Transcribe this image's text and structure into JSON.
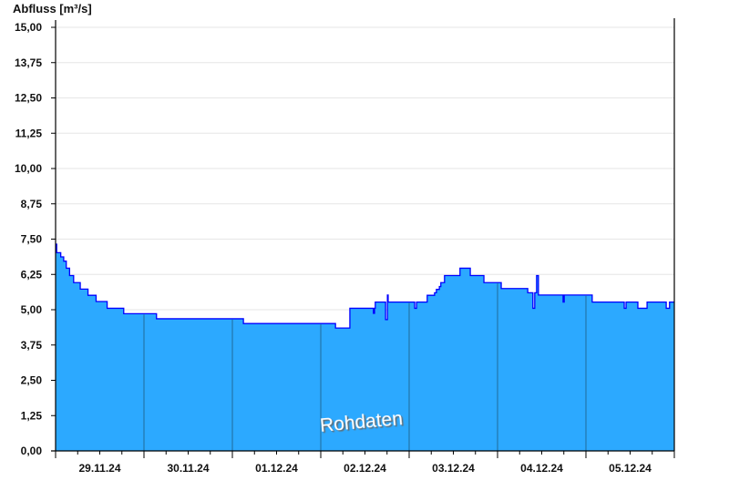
{
  "chart_data": {
    "type": "area",
    "title": "",
    "ylabel": "Abfluss [m³/s]",
    "xlabel": "",
    "ylim": [
      0,
      15
    ],
    "xlim": [
      "2024-11-29T00:00",
      "2024-12-06T00:00"
    ],
    "yticks": [
      "0,00",
      "1,25",
      "2,50",
      "3,75",
      "5,00",
      "6,25",
      "7,50",
      "8,75",
      "10,00",
      "11,25",
      "12,50",
      "13,75",
      "15,00"
    ],
    "xtick_labels": [
      "29.11.24",
      "30.11.24",
      "01.12.24",
      "02.12.24",
      "03.12.24",
      "04.12.24",
      "05.12.24"
    ],
    "grid": "horizontal",
    "step": true,
    "watermark": "Rohdaten",
    "colors": {
      "fill": "#2ca9ff",
      "line": "#0000ff",
      "day_separator": "#1f6a9a",
      "grid": "#e6e6e6"
    },
    "points": [
      [
        "2024-11-29T00:00",
        7.32
      ],
      [
        "2024-11-29T00:18",
        7.02
      ],
      [
        "2024-11-29T01:24",
        6.87
      ],
      [
        "2024-11-29T02:12",
        6.72
      ],
      [
        "2024-11-29T02:54",
        6.47
      ],
      [
        "2024-11-29T03:48",
        6.21
      ],
      [
        "2024-11-29T04:54",
        5.96
      ],
      [
        "2024-11-29T06:42",
        5.73
      ],
      [
        "2024-11-29T08:48",
        5.51
      ],
      [
        "2024-11-29T11:00",
        5.29
      ],
      [
        "2024-11-29T14:00",
        5.05
      ],
      [
        "2024-11-29T18:30",
        4.86
      ],
      [
        "2024-11-30T03:24",
        4.68
      ],
      [
        "2024-12-01T03:00",
        4.51
      ],
      [
        "2024-12-02T04:00",
        4.35
      ],
      [
        "2024-12-02T07:54",
        5.05
      ],
      [
        "2024-12-02T14:18",
        4.87
      ],
      [
        "2024-12-02T14:36",
        5.05
      ],
      [
        "2024-12-02T14:48",
        5.27
      ],
      [
        "2024-12-02T17:36",
        4.65
      ],
      [
        "2024-12-02T18:06",
        5.52
      ],
      [
        "2024-12-02T18:18",
        5.27
      ],
      [
        "2024-12-03T01:30",
        5.05
      ],
      [
        "2024-12-03T02:00",
        5.27
      ],
      [
        "2024-12-03T04:54",
        5.51
      ],
      [
        "2024-12-03T06:54",
        5.6
      ],
      [
        "2024-12-03T07:24",
        5.72
      ],
      [
        "2024-12-03T08:12",
        5.82
      ],
      [
        "2024-12-03T08:36",
        5.96
      ],
      [
        "2024-12-03T09:36",
        6.21
      ],
      [
        "2024-12-03T13:48",
        6.47
      ],
      [
        "2024-12-03T16:36",
        6.21
      ],
      [
        "2024-12-03T20:18",
        5.96
      ],
      [
        "2024-12-04T01:00",
        5.75
      ],
      [
        "2024-12-04T08:12",
        5.6
      ],
      [
        "2024-12-04T09:36",
        5.05
      ],
      [
        "2024-12-04T10:06",
        5.6
      ],
      [
        "2024-12-04T10:36",
        6.21
      ],
      [
        "2024-12-04T11:06",
        5.52
      ],
      [
        "2024-12-04T17:48",
        5.27
      ],
      [
        "2024-12-04T18:06",
        5.52
      ],
      [
        "2024-12-05T01:42",
        5.27
      ],
      [
        "2024-12-05T10:24",
        5.05
      ],
      [
        "2024-12-05T10:54",
        5.27
      ],
      [
        "2024-12-05T14:06",
        5.05
      ],
      [
        "2024-12-05T16:36",
        5.27
      ],
      [
        "2024-12-05T21:48",
        5.05
      ],
      [
        "2024-12-05T22:42",
        5.27
      ],
      [
        "2024-12-06T00:00",
        5.27
      ]
    ]
  }
}
